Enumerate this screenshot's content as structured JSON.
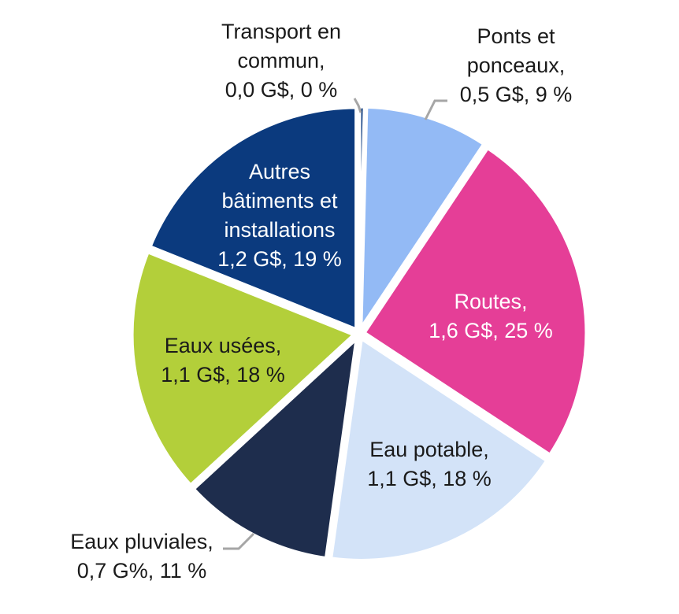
{
  "chart_data": {
    "type": "pie",
    "title": "",
    "slices": [
      {
        "name": "Transport en commun",
        "label": [
          "Transport en",
          "commun,",
          "0,0 G$, 0 %"
        ],
        "value": 0.0,
        "percent": 0.4,
        "color": "#0b3a7e",
        "label_color": "#1a1a1a"
      },
      {
        "name": "Ponts et ponceaux",
        "label": [
          "Ponts et",
          "ponceaux,",
          "0,5 G$, 9 %"
        ],
        "value": 0.5,
        "percent": 9,
        "color": "#93baf5",
        "label_color": "#1a1a1a"
      },
      {
        "name": "Routes",
        "label": [
          "Routes,",
          "1,6 G$, 25 %"
        ],
        "value": 1.6,
        "percent": 25,
        "color": "#e53e97",
        "label_color": "#ffffff"
      },
      {
        "name": "Eau potable",
        "label": [
          "Eau potable,",
          "1,1 G$, 18 %"
        ],
        "value": 1.1,
        "percent": 18,
        "color": "#d3e3f8",
        "label_color": "#1a1a1a"
      },
      {
        "name": "Eaux pluviales",
        "label": [
          "Eaux pluviales,",
          "0,7 G%, 11 %"
        ],
        "value": 0.7,
        "percent": 11,
        "color": "#1e2d4d",
        "label_color": "#1a1a1a"
      },
      {
        "name": "Eaux usées",
        "label": [
          "Eaux usées,",
          "1,1 G$, 18 %"
        ],
        "value": 1.1,
        "percent": 18,
        "color": "#b3cf3a",
        "label_color": "#1a1a1a"
      },
      {
        "name": "Autres bâtiments et installations",
        "label": [
          "Autres",
          "bâtiments et",
          "installations",
          "1,2 G$, 19 %"
        ],
        "value": 1.2,
        "percent": 19,
        "color": "#0b3a7e",
        "label_color": "#ffffff"
      }
    ]
  }
}
